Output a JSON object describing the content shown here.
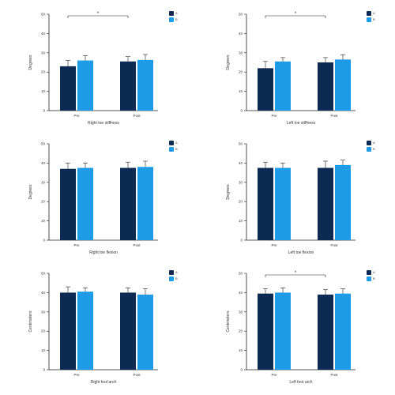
{
  "colors": {
    "series1": "#0d2a52",
    "series2": "#1e9be6",
    "axis": "#222222"
  },
  "chart_data": [
    {
      "type": "bar",
      "title": "",
      "xlabel": "Right toe stiffness",
      "ylabel": "Degrees",
      "ylim": [
        0,
        50
      ],
      "yticks": [
        0,
        10,
        20,
        30,
        40,
        50
      ],
      "categories": [
        "Pre",
        "Post"
      ],
      "series": [
        {
          "name": "A",
          "values": [
            23.0,
            25.5
          ],
          "errors": [
            3.0,
            2.5
          ]
        },
        {
          "name": "B",
          "values": [
            26.0,
            26.3
          ],
          "errors": [
            2.5,
            2.8
          ]
        }
      ],
      "annotations": [
        {
          "text": "*",
          "from": 0,
          "to": 2
        }
      ],
      "legend": "top-right"
    },
    {
      "type": "bar",
      "title": "",
      "xlabel": "Left toe stiffness",
      "ylabel": "Degrees",
      "ylim": [
        0,
        50
      ],
      "yticks": [
        0,
        10,
        20,
        30,
        40,
        50
      ],
      "categories": [
        "Pre",
        "Post"
      ],
      "series": [
        {
          "name": "A",
          "values": [
            22.0,
            25.0
          ],
          "errors": [
            3.5,
            2.5
          ]
        },
        {
          "name": "B",
          "values": [
            25.5,
            26.5
          ],
          "errors": [
            2.0,
            2.5
          ]
        }
      ],
      "annotations": [
        {
          "text": "*",
          "from": 0,
          "to": 2
        }
      ],
      "legend": "top-right"
    },
    {
      "type": "bar",
      "title": "",
      "xlabel": "Right toe flexion",
      "ylabel": "Degrees",
      "ylim": [
        0,
        50
      ],
      "yticks": [
        0,
        10,
        20,
        30,
        40,
        50
      ],
      "categories": [
        "Pre",
        "Post"
      ],
      "series": [
        {
          "name": "A",
          "values": [
            37.0,
            37.5
          ],
          "errors": [
            3.0,
            3.0
          ]
        },
        {
          "name": "B",
          "values": [
            37.5,
            38.0
          ],
          "errors": [
            2.5,
            3.0
          ]
        }
      ],
      "annotations": [],
      "legend": "top-right"
    },
    {
      "type": "bar",
      "title": "",
      "xlabel": "Left toe flexion",
      "ylabel": "Degrees",
      "ylim": [
        0,
        50
      ],
      "yticks": [
        0,
        10,
        20,
        30,
        40,
        50
      ],
      "categories": [
        "Pre",
        "Post"
      ],
      "series": [
        {
          "name": "A",
          "values": [
            37.5,
            37.5
          ],
          "errors": [
            3.0,
            3.5
          ]
        },
        {
          "name": "B",
          "values": [
            37.5,
            39.0
          ],
          "errors": [
            2.5,
            2.5
          ]
        }
      ],
      "annotations": [],
      "legend": "top-right"
    },
    {
      "type": "bar",
      "title": "",
      "xlabel": "Right foot arch",
      "ylabel": "Centimeters",
      "ylim": [
        0,
        50
      ],
      "yticks": [
        0,
        10,
        20,
        30,
        40,
        50
      ],
      "categories": [
        "Pre",
        "Post"
      ],
      "series": [
        {
          "name": "A",
          "values": [
            40.0,
            40.0
          ],
          "errors": [
            3.0,
            2.5
          ]
        },
        {
          "name": "B",
          "values": [
            40.5,
            39.0
          ],
          "errors": [
            2.0,
            3.0
          ]
        }
      ],
      "annotations": [],
      "legend": "top-right"
    },
    {
      "type": "bar",
      "title": "",
      "xlabel": "Left foot arch",
      "ylabel": "Centimeters",
      "ylim": [
        0,
        50
      ],
      "yticks": [
        0,
        10,
        20,
        30,
        40,
        50
      ],
      "categories": [
        "Pre",
        "Post"
      ],
      "series": [
        {
          "name": "A",
          "values": [
            39.5,
            39.0
          ],
          "errors": [
            2.5,
            2.5
          ]
        },
        {
          "name": "B",
          "values": [
            40.0,
            39.5
          ],
          "errors": [
            2.5,
            2.5
          ]
        }
      ],
      "annotations": [
        {
          "text": "*",
          "from": 0,
          "to": 2
        }
      ],
      "legend": "top-right"
    }
  ]
}
